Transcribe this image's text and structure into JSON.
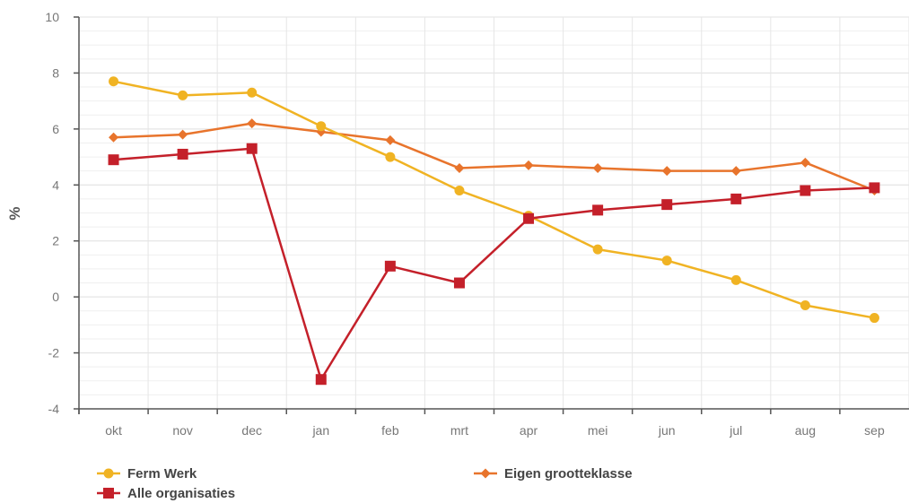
{
  "chart_data": {
    "type": "line",
    "categories": [
      "okt",
      "nov",
      "dec",
      "jan",
      "feb",
      "mrt",
      "apr",
      "mei",
      "jun",
      "jul",
      "aug",
      "sep"
    ],
    "ylabel": "%",
    "xlabel": "",
    "ylim": [
      -4,
      10
    ],
    "yticks": [
      -4,
      -2,
      0,
      2,
      4,
      6,
      8,
      10
    ],
    "grid": true,
    "legend_position": "bottom",
    "series": [
      {
        "name": "Ferm Werk",
        "color": "#f0b323",
        "marker": "circle",
        "values": [
          7.7,
          7.2,
          7.3,
          6.1,
          5.0,
          3.8,
          2.9,
          1.7,
          1.3,
          0.6,
          -0.3,
          -0.75
        ]
      },
      {
        "name": "Eigen grootteklasse",
        "color": "#e8742c",
        "marker": "diamond",
        "values": [
          5.7,
          5.8,
          6.2,
          5.9,
          5.6,
          4.6,
          4.7,
          4.6,
          4.5,
          4.5,
          4.8,
          3.8
        ]
      },
      {
        "name": "Alle organisaties",
        "color": "#c4202a",
        "marker": "square",
        "values": [
          4.9,
          5.1,
          5.3,
          -2.95,
          1.1,
          0.5,
          2.8,
          3.1,
          3.3,
          3.5,
          3.8,
          3.9
        ]
      }
    ]
  }
}
